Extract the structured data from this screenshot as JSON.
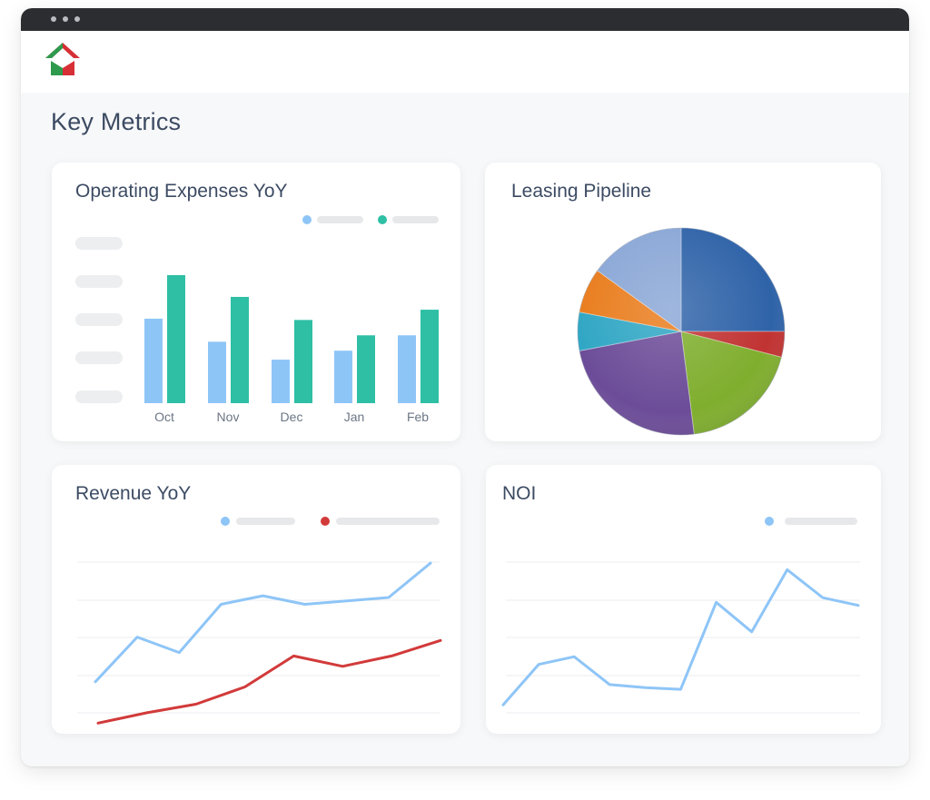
{
  "header": {
    "logo_icon": "house-logo-icon"
  },
  "page": {
    "title": "Key Metrics"
  },
  "colors": {
    "light_blue": "#8ec5f7",
    "teal": "#2ebfa5",
    "red": "#d23a3a",
    "text": "#3c4b63"
  },
  "cards": {
    "opex": {
      "title": "Operating Expenses YoY",
      "chart_data": {
        "type": "bar",
        "categories": [
          "Oct",
          "Nov",
          "Dec",
          "Jan",
          "Feb"
        ],
        "series": [
          {
            "values": [
              66,
              48,
              34,
              41,
              53
            ],
            "color": "#8ec5f7"
          },
          {
            "values": [
              100,
              83,
              65,
              53,
              73
            ],
            "color": "#2ebfa5"
          }
        ],
        "ylim": [
          0,
          100
        ]
      }
    },
    "leasing": {
      "title": "Leasing Pipeline",
      "chart_data": {
        "type": "pie",
        "slices": [
          {
            "value": 25,
            "color": "#2f63a8"
          },
          {
            "value": 4,
            "color": "#c13333"
          },
          {
            "value": 19,
            "color": "#7fae2e"
          },
          {
            "value": 24,
            "color": "#6c4c98"
          },
          {
            "value": 6,
            "color": "#2fa6c4"
          },
          {
            "value": 7,
            "color": "#e97c1c"
          },
          {
            "value": 15,
            "color": "#8aa7d6"
          }
        ]
      }
    },
    "revenue": {
      "title": "Revenue YoY",
      "chart_data": {
        "type": "line",
        "series": [
          {
            "values": [
              22,
              48,
              39,
              67,
              72,
              67,
              69,
              71,
              91
            ],
            "color": "#8ec5f7"
          },
          {
            "values": [
              -2,
              4,
              9,
              19,
              37,
              31,
              37,
              46
            ],
            "color": "#d23a3a"
          }
        ],
        "ylim": [
          -5,
          100
        ]
      }
    },
    "noi": {
      "title": "NOI",
      "chart_data": {
        "type": "line",
        "series": [
          {
            "values": [
              4,
              30,
              35,
              17,
              15,
              14,
              70,
              51,
              91,
              73,
              68
            ],
            "color": "#8ec5f7"
          }
        ],
        "ylim": [
          0,
          100
        ]
      }
    }
  }
}
